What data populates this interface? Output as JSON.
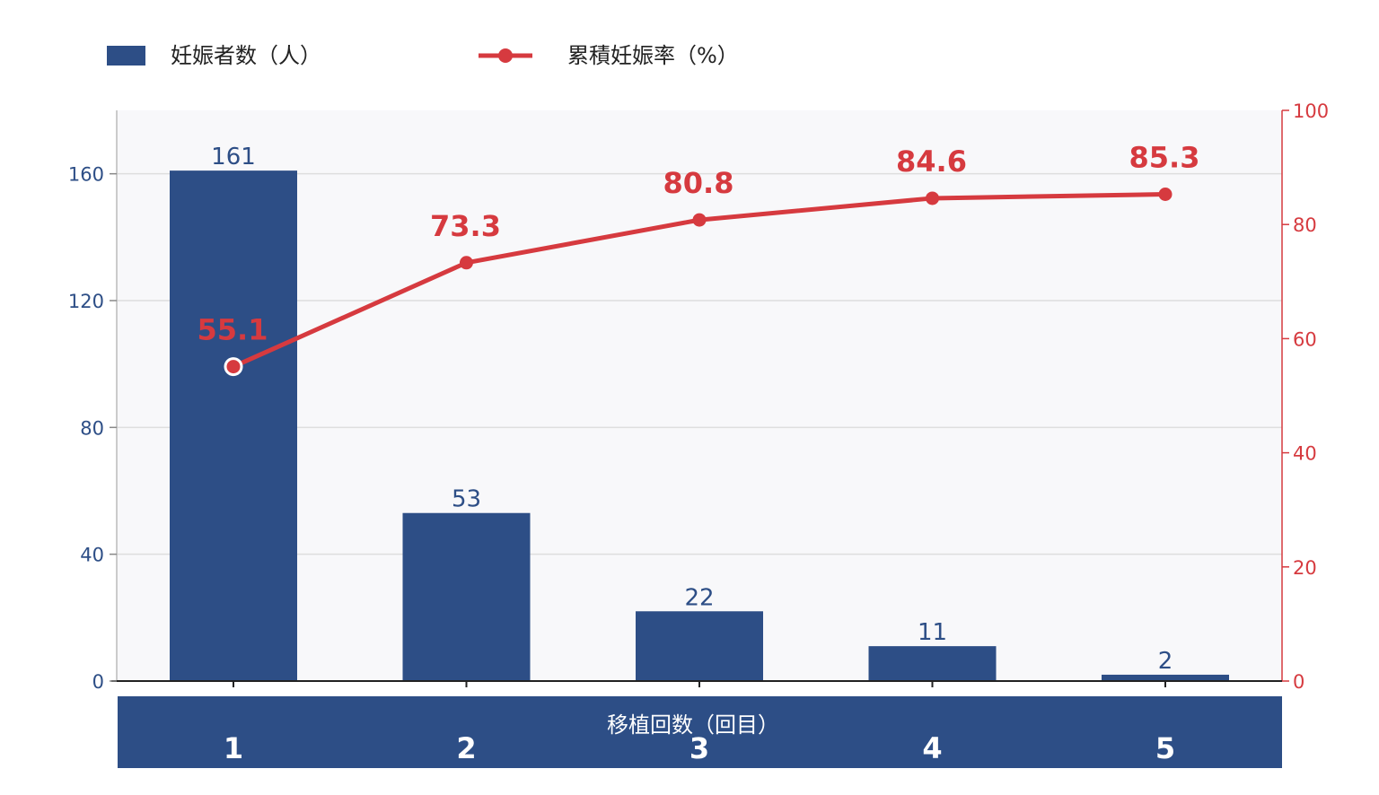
{
  "chart_data": {
    "type": "bar+line",
    "categories": [
      "1",
      "2",
      "3",
      "4",
      "5"
    ],
    "series": [
      {
        "name": "妊娠者数（人）",
        "type": "bar",
        "axis": "left",
        "values": [
          161,
          53,
          22,
          11,
          2
        ],
        "color": "#2d4e86"
      },
      {
        "name": "累積妊娠率（%）",
        "type": "line",
        "axis": "right",
        "values": [
          55.1,
          73.3,
          80.8,
          84.6,
          85.3
        ],
        "labels": [
          "55.1",
          "73.3",
          "80.8",
          "84.6",
          "85.3"
        ],
        "color": "#d63a3f"
      }
    ],
    "xlabel": "移植回数（回目）",
    "ylabel_left": "",
    "ylabel_right": "",
    "ylim_left": [
      0,
      180
    ],
    "yticks_left": [
      0,
      40,
      80,
      120,
      160
    ],
    "ylim_right": [
      0,
      100
    ],
    "yticks_right": [
      0,
      20,
      40,
      60,
      80,
      100
    ],
    "grid": true,
    "legend": "top-left",
    "plot_background": "#f8f8fa",
    "xaxis_band_color": "#2d4e86"
  }
}
